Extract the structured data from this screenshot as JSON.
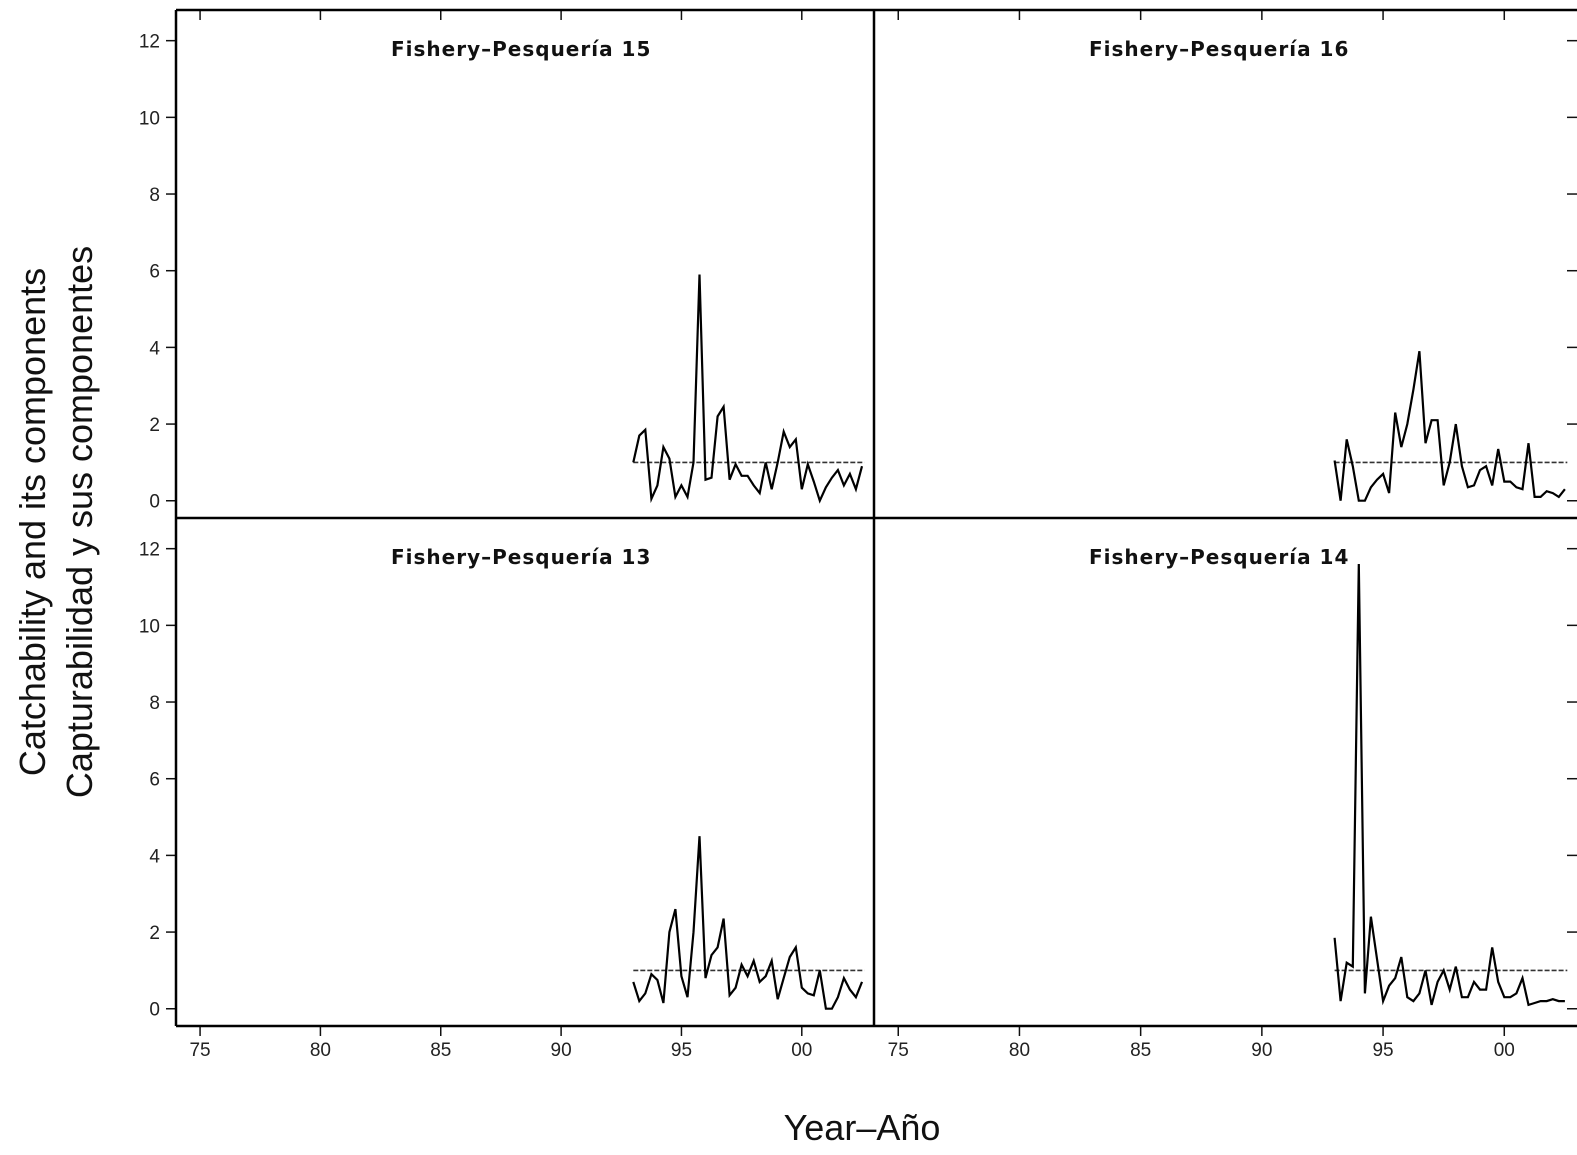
{
  "figure": {
    "xlabel": "Year–Año",
    "ylabel_line1": "Catchability and its components",
    "ylabel_line2": "Capturabilidad y sus componentes"
  },
  "chart_data": [
    {
      "type": "line",
      "panel": "top-left",
      "title": "Fishery–Pesquería  15",
      "xlim": [
        1974,
        2003
      ],
      "ylim": [
        -0.45,
        12.8
      ],
      "yticks": [
        0,
        2,
        4,
        6,
        8,
        10,
        12
      ],
      "xticks": [
        1975,
        1980,
        1985,
        1990,
        1995,
        2000
      ],
      "xtick_labels": [
        "75",
        "80",
        "85",
        "90",
        "95",
        "00"
      ],
      "reference_line": {
        "y": 1.0,
        "x": [
          1993.0,
          2002.6
        ],
        "style": "dashed"
      },
      "series": [
        {
          "x": [
            1993.0,
            1993.25,
            1993.5,
            1993.75,
            1994.0,
            1994.25,
            1994.5,
            1994.75,
            1995.0,
            1995.25,
            1995.5,
            1995.75,
            1996.0,
            1996.25,
            1996.5,
            1996.75,
            1997.0,
            1997.25,
            1997.5,
            1997.75,
            1998.0,
            1998.25,
            1998.5,
            1998.75,
            1999.0,
            1999.25,
            1999.5,
            1999.75,
            2000.0,
            2000.25,
            2000.5,
            2000.75,
            2001.0,
            2001.25,
            2001.5,
            2001.75,
            2002.0,
            2002.25,
            2002.5
          ],
          "y": [
            1.0,
            1.7,
            1.85,
            0.05,
            0.4,
            1.4,
            1.1,
            0.1,
            0.4,
            0.1,
            1.0,
            5.9,
            0.55,
            0.6,
            2.2,
            2.45,
            0.55,
            0.95,
            0.65,
            0.65,
            0.4,
            0.2,
            1.0,
            0.3,
            1.0,
            1.8,
            1.4,
            1.6,
            0.3,
            0.95,
            0.5,
            0.0,
            0.35,
            0.6,
            0.8,
            0.4,
            0.7,
            0.3,
            0.9
          ]
        }
      ]
    },
    {
      "type": "line",
      "panel": "top-right",
      "title": "Fishery–Pesquería 16",
      "xlim": [
        1974,
        2003
      ],
      "ylim": [
        -0.45,
        12.8
      ],
      "yticks": [
        0,
        2,
        4,
        6,
        8,
        10,
        12
      ],
      "xticks": [
        1975,
        1980,
        1985,
        1990,
        1995,
        2000
      ],
      "xtick_labels": [
        "75",
        "80",
        "85",
        "90",
        "95",
        "00"
      ],
      "reference_line": {
        "y": 1.0,
        "x": [
          1993.0,
          2002.6
        ],
        "style": "dashed"
      },
      "series": [
        {
          "x": [
            1993.0,
            1993.25,
            1993.5,
            1993.75,
            1994.0,
            1994.25,
            1994.5,
            1994.75,
            1995.0,
            1995.25,
            1995.5,
            1995.75,
            1996.0,
            1996.25,
            1996.5,
            1996.75,
            1997.0,
            1997.25,
            1997.5,
            1997.75,
            1998.0,
            1998.25,
            1998.5,
            1998.75,
            1999.0,
            1999.25,
            1999.5,
            1999.75,
            2000.0,
            2000.25,
            2000.5,
            2000.75,
            2001.0,
            2001.25,
            2001.5,
            2001.75,
            2002.0,
            2002.25,
            2002.5
          ],
          "y": [
            1.05,
            0.0,
            1.6,
            0.9,
            0.0,
            0.0,
            0.35,
            0.55,
            0.7,
            0.2,
            2.3,
            1.4,
            2.0,
            2.9,
            3.9,
            1.5,
            2.1,
            2.1,
            0.4,
            1.0,
            2.0,
            0.9,
            0.35,
            0.4,
            0.8,
            0.9,
            0.4,
            1.35,
            0.5,
            0.5,
            0.35,
            0.3,
            1.5,
            0.1,
            0.1,
            0.25,
            0.2,
            0.1,
            0.3
          ]
        }
      ]
    },
    {
      "type": "line",
      "panel": "bottom-left",
      "title": "Fishery–Pesquería  13",
      "xlim": [
        1974,
        2003
      ],
      "ylim": [
        -0.45,
        12.8
      ],
      "yticks": [
        0,
        2,
        4,
        6,
        8,
        10,
        12
      ],
      "xticks": [
        1975,
        1980,
        1985,
        1990,
        1995,
        2000
      ],
      "xtick_labels": [
        "75",
        "80",
        "85",
        "90",
        "95",
        "00"
      ],
      "reference_line": {
        "y": 1.0,
        "x": [
          1993.0,
          2002.6
        ],
        "style": "dashed"
      },
      "series": [
        {
          "x": [
            1993.0,
            1993.25,
            1993.5,
            1993.75,
            1994.0,
            1994.25,
            1994.5,
            1994.75,
            1995.0,
            1995.25,
            1995.5,
            1995.75,
            1996.0,
            1996.25,
            1996.5,
            1996.75,
            1997.0,
            1997.25,
            1997.5,
            1997.75,
            1998.0,
            1998.25,
            1998.5,
            1998.75,
            1999.0,
            1999.25,
            1999.5,
            1999.75,
            2000.0,
            2000.25,
            2000.5,
            2000.75,
            2001.0,
            2001.25,
            2001.5,
            2001.75,
            2002.0,
            2002.25,
            2002.5
          ],
          "y": [
            0.7,
            0.2,
            0.4,
            0.9,
            0.75,
            0.15,
            2.0,
            2.6,
            0.85,
            0.3,
            2.0,
            4.5,
            0.8,
            1.4,
            1.6,
            2.35,
            0.35,
            0.55,
            1.15,
            0.85,
            1.25,
            0.7,
            0.85,
            1.25,
            0.25,
            0.8,
            1.35,
            1.6,
            0.55,
            0.4,
            0.35,
            1.0,
            0.0,
            0.0,
            0.3,
            0.8,
            0.5,
            0.3,
            0.7
          ]
        }
      ]
    },
    {
      "type": "line",
      "panel": "bottom-right",
      "title": "Fishery–Pesquería  14",
      "xlim": [
        1974,
        2003
      ],
      "ylim": [
        -0.45,
        12.8
      ],
      "yticks": [
        0,
        2,
        4,
        6,
        8,
        10,
        12
      ],
      "xticks": [
        1975,
        1980,
        1985,
        1990,
        1995,
        2000
      ],
      "xtick_labels": [
        "75",
        "80",
        "85",
        "90",
        "95",
        "00"
      ],
      "reference_line": {
        "y": 1.0,
        "x": [
          1993.0,
          2002.6
        ],
        "style": "dashed"
      },
      "series": [
        {
          "x": [
            1993.0,
            1993.25,
            1993.5,
            1993.75,
            1994.0,
            1994.25,
            1994.5,
            1994.75,
            1995.0,
            1995.25,
            1995.5,
            1995.75,
            1996.0,
            1996.25,
            1996.5,
            1996.75,
            1997.0,
            1997.25,
            1997.5,
            1997.75,
            1998.0,
            1998.25,
            1998.5,
            1998.75,
            1999.0,
            1999.25,
            1999.5,
            1999.75,
            2000.0,
            2000.25,
            2000.5,
            2000.75,
            2001.0,
            2001.25,
            2001.5,
            2001.75,
            2002.0,
            2002.25,
            2002.5
          ],
          "y": [
            1.85,
            0.2,
            1.2,
            1.1,
            11.6,
            0.4,
            2.4,
            1.3,
            0.2,
            0.6,
            0.8,
            1.35,
            0.3,
            0.2,
            0.4,
            1.0,
            0.1,
            0.7,
            1.0,
            0.5,
            1.1,
            0.3,
            0.3,
            0.7,
            0.5,
            0.5,
            1.6,
            0.7,
            0.3,
            0.3,
            0.4,
            0.8,
            0.1,
            0.15,
            0.2,
            0.2,
            0.25,
            0.2,
            0.2
          ]
        }
      ]
    }
  ]
}
